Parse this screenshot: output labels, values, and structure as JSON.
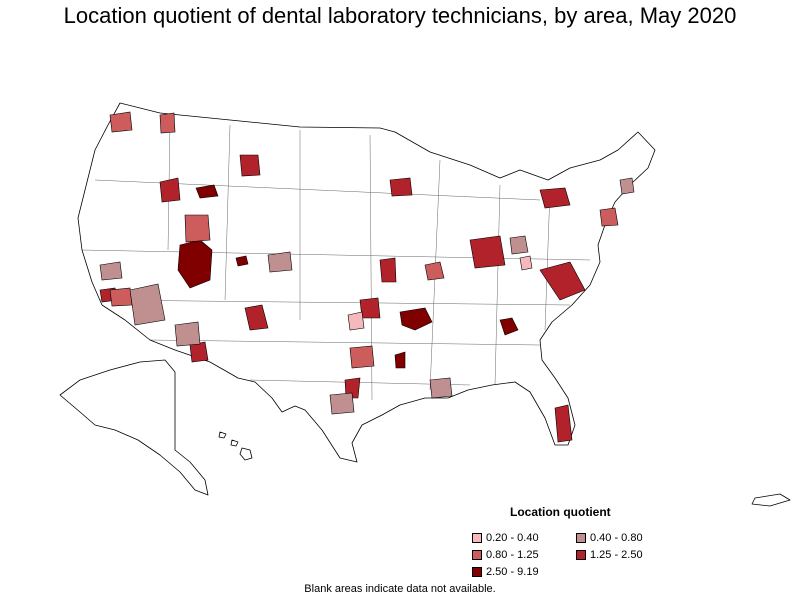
{
  "title": "Location quotient of dental laboratory technicians, by area, May 2020",
  "legend": {
    "title": "Location quotient",
    "items": [
      {
        "label": "0.20 - 0.40",
        "color": "#f4b8bd"
      },
      {
        "label": "0.40 - 0.80",
        "color": "#c09090"
      },
      {
        "label": "0.80 - 1.25",
        "color": "#cd5c5c"
      },
      {
        "label": "1.25 - 2.50",
        "color": "#b2222a"
      },
      {
        "label": "2.50 - 9.19",
        "color": "#800000"
      }
    ]
  },
  "note": "Blank areas indicate data not available."
}
